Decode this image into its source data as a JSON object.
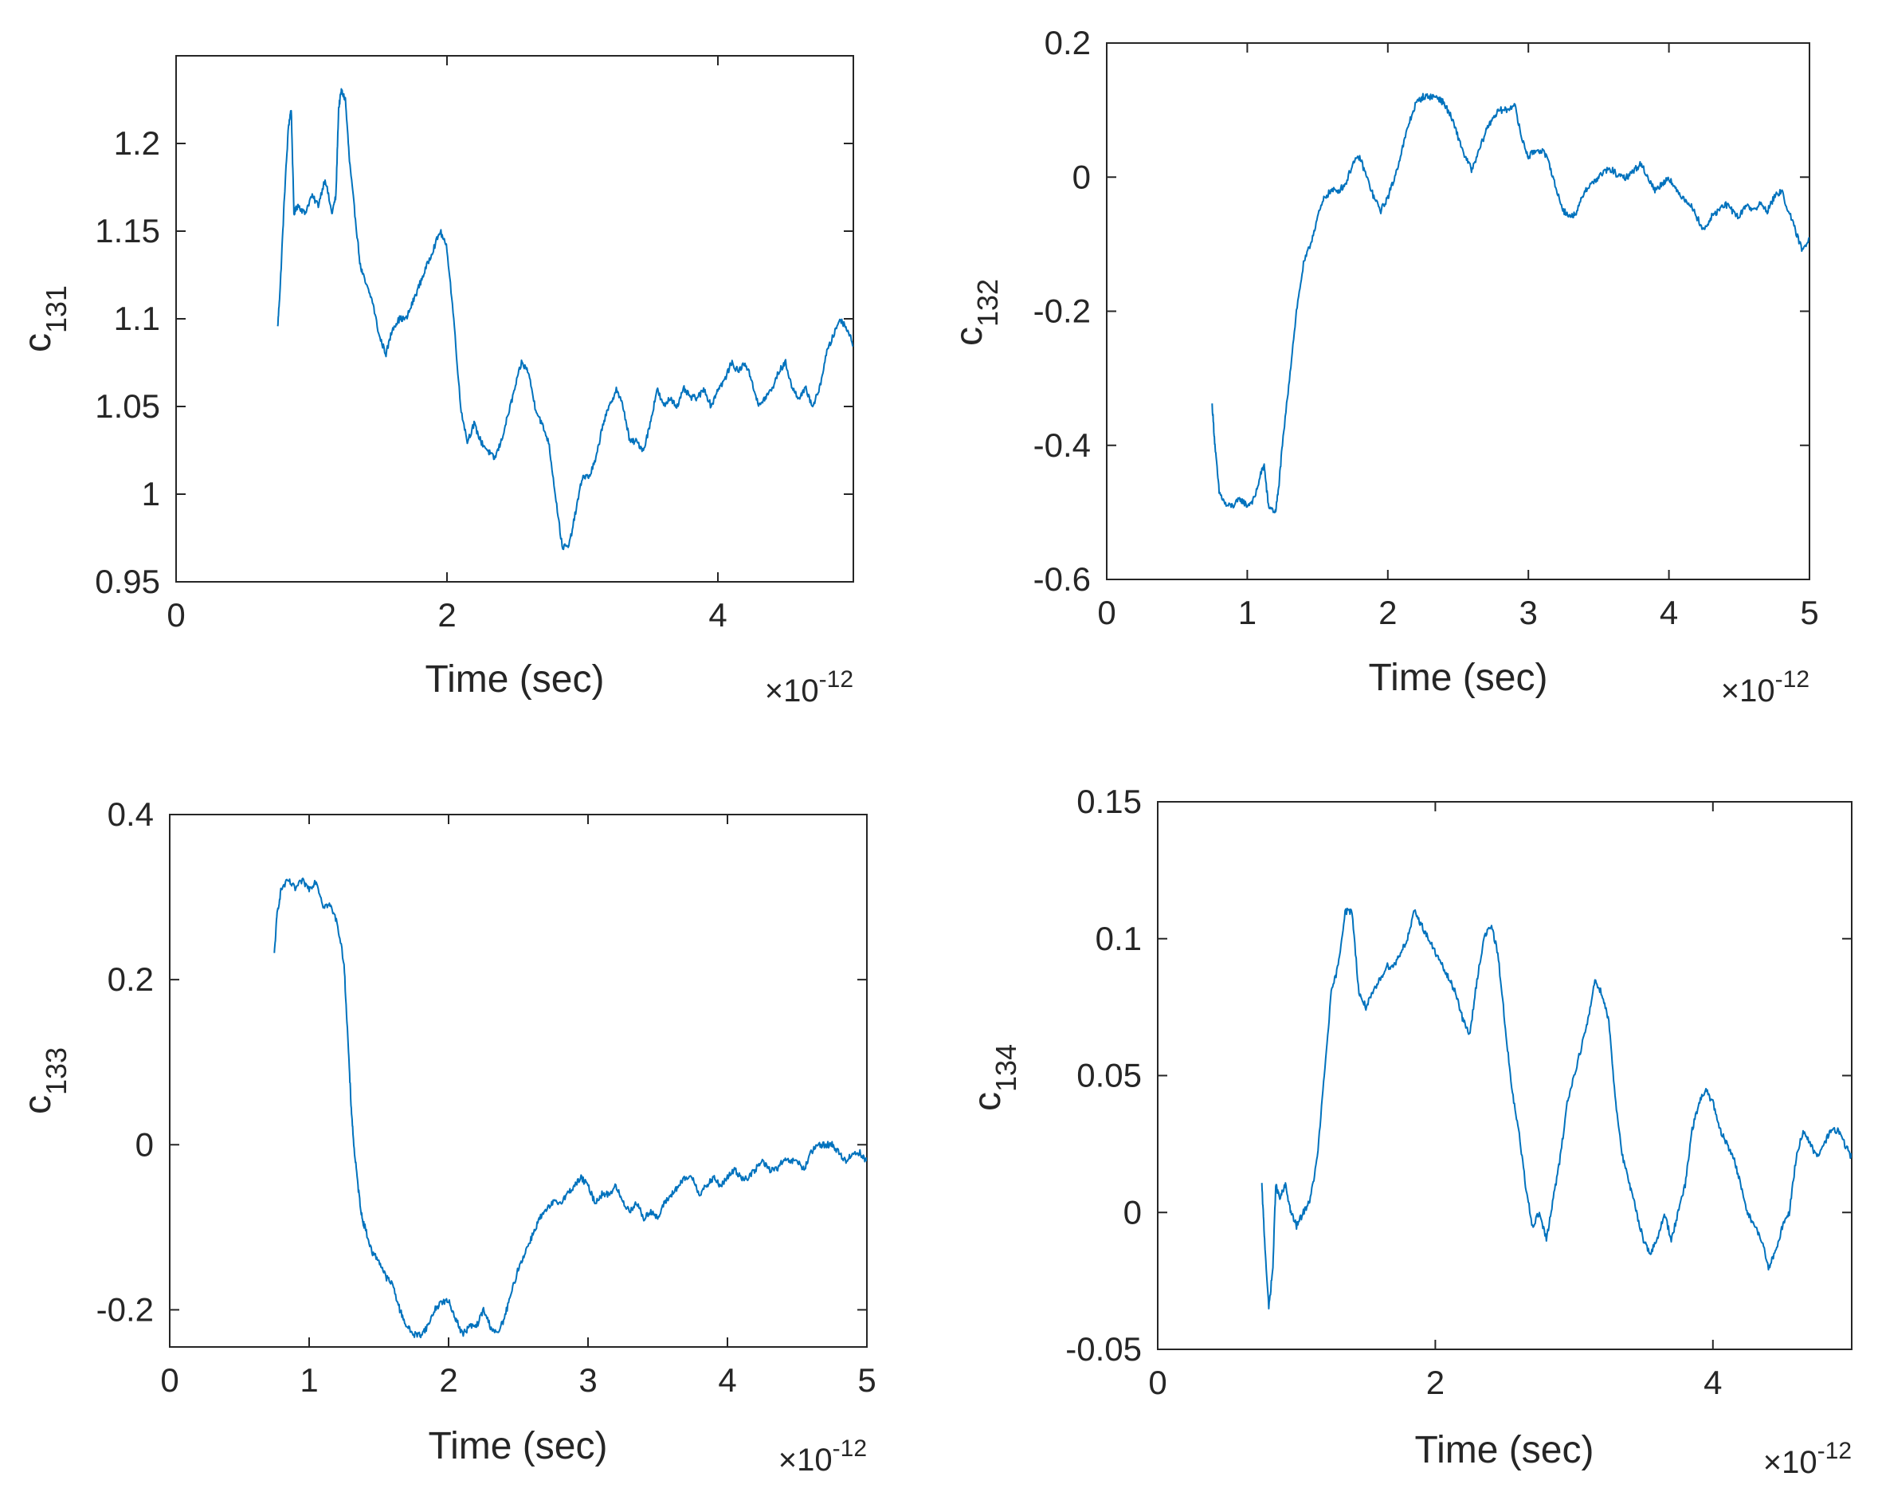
{
  "chart_data": [
    {
      "type": "line",
      "title": "",
      "xlabel": "Time (sec)",
      "ylabel_main": "c",
      "ylabel_sub": "131",
      "x_multiplier": "×10",
      "x_exponent": "-12",
      "xlim": [
        0,
        5
      ],
      "ylim": [
        0.95,
        1.25
      ],
      "xticks": [
        0,
        2,
        4
      ],
      "xtick_labels": [
        "0",
        "2",
        "4"
      ],
      "yticks": [
        0.95,
        1.0,
        1.05,
        1.1,
        1.15,
        1.2
      ],
      "ytick_labels": [
        "0.95",
        "1",
        "1.05",
        "1.1",
        "1.15",
        "1.2"
      ],
      "line_color": "#0072BD",
      "grid": false,
      "series": [
        {
          "name": "c131",
          "x": [
            0.75,
            0.77,
            0.8,
            0.83,
            0.85,
            0.87,
            0.9,
            0.95,
            1.0,
            1.05,
            1.1,
            1.15,
            1.18,
            1.2,
            1.22,
            1.25,
            1.28,
            1.32,
            1.36,
            1.4,
            1.45,
            1.5,
            1.55,
            1.6,
            1.65,
            1.7,
            1.75,
            1.8,
            1.85,
            1.9,
            1.95,
            2.0,
            2.05,
            2.1,
            2.15,
            2.2,
            2.25,
            2.3,
            2.35,
            2.4,
            2.45,
            2.5,
            2.55,
            2.6,
            2.65,
            2.7,
            2.75,
            2.8,
            2.85,
            2.9,
            2.95,
            3.0,
            3.05,
            3.1,
            3.15,
            3.2,
            3.25,
            3.3,
            3.35,
            3.4,
            3.45,
            3.5,
            3.55,
            3.6,
            3.65,
            3.7,
            3.75,
            3.8,
            3.85,
            3.9,
            3.95,
            4.0,
            4.05,
            4.1,
            4.15,
            4.2,
            4.25,
            4.3,
            4.35,
            4.4,
            4.45,
            4.5,
            4.55,
            4.6,
            4.65,
            4.7,
            4.75,
            4.8,
            4.85,
            4.9,
            4.95,
            5.0
          ],
          "y": [
            1.095,
            1.12,
            1.17,
            1.21,
            1.22,
            1.16,
            1.165,
            1.16,
            1.17,
            1.165,
            1.18,
            1.16,
            1.17,
            1.22,
            1.23,
            1.225,
            1.19,
            1.16,
            1.13,
            1.12,
            1.11,
            1.09,
            1.08,
            1.095,
            1.1,
            1.1,
            1.11,
            1.12,
            1.13,
            1.14,
            1.15,
            1.14,
            1.1,
            1.05,
            1.03,
            1.04,
            1.03,
            1.025,
            1.02,
            1.03,
            1.045,
            1.06,
            1.075,
            1.07,
            1.05,
            1.04,
            1.03,
            1.0,
            0.97,
            0.97,
            0.99,
            1.01,
            1.01,
            1.02,
            1.04,
            1.05,
            1.06,
            1.05,
            1.03,
            1.03,
            1.025,
            1.04,
            1.06,
            1.05,
            1.055,
            1.05,
            1.06,
            1.055,
            1.055,
            1.06,
            1.05,
            1.06,
            1.065,
            1.075,
            1.07,
            1.075,
            1.065,
            1.05,
            1.055,
            1.06,
            1.07,
            1.075,
            1.06,
            1.055,
            1.06,
            1.05,
            1.06,
            1.08,
            1.09,
            1.1,
            1.095,
            1.085
          ]
        }
      ]
    },
    {
      "type": "line",
      "title": "",
      "xlabel": "Time (sec)",
      "ylabel_main": "c",
      "ylabel_sub": "132",
      "x_multiplier": "×10",
      "x_exponent": "-12",
      "xlim": [
        0,
        5
      ],
      "ylim": [
        -0.6,
        0.2
      ],
      "xticks": [
        0,
        1,
        2,
        3,
        4,
        5
      ],
      "xtick_labels": [
        "0",
        "1",
        "2",
        "3",
        "4",
        "5"
      ],
      "yticks": [
        -0.6,
        -0.4,
        -0.2,
        0,
        0.2
      ],
      "ytick_labels": [
        "-0.6",
        "-0.4",
        "-0.2",
        "0",
        "0.2"
      ],
      "line_color": "#0072BD",
      "grid": false,
      "series": [
        {
          "name": "c132",
          "x": [
            0.75,
            0.77,
            0.8,
            0.85,
            0.9,
            0.95,
            1.0,
            1.05,
            1.1,
            1.12,
            1.15,
            1.2,
            1.22,
            1.25,
            1.3,
            1.35,
            1.4,
            1.45,
            1.5,
            1.55,
            1.6,
            1.65,
            1.7,
            1.75,
            1.8,
            1.85,
            1.9,
            1.95,
            2.0,
            2.05,
            2.1,
            2.15,
            2.2,
            2.25,
            2.3,
            2.35,
            2.4,
            2.45,
            2.5,
            2.55,
            2.6,
            2.65,
            2.7,
            2.75,
            2.8,
            2.85,
            2.9,
            2.95,
            3.0,
            3.05,
            3.1,
            3.15,
            3.2,
            3.25,
            3.3,
            3.35,
            3.4,
            3.45,
            3.5,
            3.55,
            3.6,
            3.65,
            3.7,
            3.75,
            3.8,
            3.85,
            3.9,
            3.95,
            4.0,
            4.05,
            4.1,
            4.15,
            4.2,
            4.25,
            4.3,
            4.35,
            4.4,
            4.45,
            4.5,
            4.55,
            4.6,
            4.65,
            4.7,
            4.75,
            4.8,
            4.85,
            4.9,
            4.95,
            5.0
          ],
          "y": [
            -0.34,
            -0.4,
            -0.47,
            -0.49,
            -0.49,
            -0.48,
            -0.49,
            -0.48,
            -0.44,
            -0.43,
            -0.49,
            -0.5,
            -0.47,
            -0.4,
            -0.3,
            -0.2,
            -0.13,
            -0.1,
            -0.06,
            -0.03,
            -0.02,
            -0.02,
            -0.01,
            0.02,
            0.03,
            0.0,
            -0.03,
            -0.05,
            -0.03,
            0.0,
            0.04,
            0.08,
            0.11,
            0.12,
            0.12,
            0.12,
            0.11,
            0.09,
            0.06,
            0.03,
            0.01,
            0.04,
            0.07,
            0.09,
            0.1,
            0.1,
            0.11,
            0.06,
            0.03,
            0.04,
            0.04,
            0.02,
            -0.02,
            -0.05,
            -0.06,
            -0.05,
            -0.02,
            -0.01,
            0.0,
            0.01,
            0.01,
            0.0,
            0.0,
            0.01,
            0.02,
            0.0,
            -0.02,
            -0.01,
            0.0,
            -0.02,
            -0.03,
            -0.04,
            -0.06,
            -0.08,
            -0.06,
            -0.05,
            -0.04,
            -0.05,
            -0.06,
            -0.04,
            -0.05,
            -0.04,
            -0.05,
            -0.03,
            -0.02,
            -0.05,
            -0.08,
            -0.11,
            -0.09
          ]
        }
      ]
    },
    {
      "type": "line",
      "title": "",
      "xlabel": "Time (sec)",
      "ylabel_main": "c",
      "ylabel_sub": "133",
      "x_multiplier": "×10",
      "x_exponent": "-12",
      "xlim": [
        0,
        5
      ],
      "ylim": [
        -0.245,
        0.4
      ],
      "xticks": [
        0,
        1,
        2,
        3,
        4,
        5
      ],
      "xtick_labels": [
        "0",
        "1",
        "2",
        "3",
        "4",
        "5"
      ],
      "yticks": [
        -0.2,
        0,
        0.2,
        0.4
      ],
      "ytick_labels": [
        "-0.2",
        "0",
        "0.2",
        "0.4"
      ],
      "line_color": "#0072BD",
      "grid": false,
      "series": [
        {
          "name": "c133",
          "x": [
            0.75,
            0.77,
            0.8,
            0.85,
            0.9,
            0.95,
            1.0,
            1.05,
            1.1,
            1.15,
            1.2,
            1.25,
            1.28,
            1.3,
            1.32,
            1.35,
            1.38,
            1.4,
            1.45,
            1.5,
            1.55,
            1.6,
            1.65,
            1.7,
            1.75,
            1.8,
            1.85,
            1.9,
            1.95,
            2.0,
            2.05,
            2.1,
            2.15,
            2.2,
            2.25,
            2.3,
            2.35,
            2.4,
            2.45,
            2.5,
            2.55,
            2.6,
            2.65,
            2.7,
            2.75,
            2.8,
            2.85,
            2.9,
            2.95,
            3.0,
            3.05,
            3.1,
            3.15,
            3.2,
            3.25,
            3.3,
            3.35,
            3.4,
            3.45,
            3.5,
            3.55,
            3.6,
            3.65,
            3.7,
            3.75,
            3.8,
            3.85,
            3.9,
            3.95,
            4.0,
            4.05,
            4.1,
            4.15,
            4.2,
            4.25,
            4.3,
            4.35,
            4.4,
            4.45,
            4.5,
            4.55,
            4.6,
            4.65,
            4.7,
            4.75,
            4.8,
            4.85,
            4.9,
            4.95,
            5.0
          ],
          "y": [
            0.23,
            0.28,
            0.31,
            0.32,
            0.31,
            0.32,
            0.31,
            0.32,
            0.29,
            0.29,
            0.27,
            0.22,
            0.12,
            0.05,
            0.0,
            -0.05,
            -0.09,
            -0.1,
            -0.13,
            -0.14,
            -0.16,
            -0.17,
            -0.2,
            -0.22,
            -0.23,
            -0.23,
            -0.22,
            -0.2,
            -0.19,
            -0.19,
            -0.21,
            -0.23,
            -0.22,
            -0.22,
            -0.2,
            -0.22,
            -0.23,
            -0.21,
            -0.18,
            -0.15,
            -0.13,
            -0.11,
            -0.09,
            -0.08,
            -0.07,
            -0.07,
            -0.06,
            -0.05,
            -0.04,
            -0.05,
            -0.07,
            -0.06,
            -0.06,
            -0.05,
            -0.07,
            -0.08,
            -0.07,
            -0.09,
            -0.08,
            -0.09,
            -0.07,
            -0.06,
            -0.05,
            -0.04,
            -0.04,
            -0.06,
            -0.05,
            -0.04,
            -0.05,
            -0.04,
            -0.03,
            -0.04,
            -0.04,
            -0.03,
            -0.02,
            -0.03,
            -0.03,
            -0.02,
            -0.02,
            -0.02,
            -0.03,
            -0.01,
            0.0,
            0.0,
            0.0,
            -0.01,
            -0.02,
            -0.01,
            -0.01,
            -0.02
          ]
        }
      ]
    },
    {
      "type": "line",
      "title": "",
      "xlabel": "Time (sec)",
      "ylabel_main": "c",
      "ylabel_sub": "134",
      "x_multiplier": "×10",
      "x_exponent": "-12",
      "xlim": [
        0,
        5
      ],
      "ylim": [
        -0.05,
        0.15
      ],
      "xticks": [
        0,
        2,
        4
      ],
      "xtick_labels": [
        "0",
        "2",
        "4"
      ],
      "yticks": [
        -0.05,
        0,
        0.05,
        0.1,
        0.15
      ],
      "ytick_labels": [
        "-0.05",
        "0",
        "0.05",
        "0.1",
        "0.15"
      ],
      "line_color": "#0072BD",
      "grid": false,
      "series": [
        {
          "name": "c134",
          "x": [
            0.75,
            0.77,
            0.8,
            0.83,
            0.85,
            0.88,
            0.92,
            0.96,
            1.0,
            1.05,
            1.1,
            1.15,
            1.2,
            1.25,
            1.3,
            1.35,
            1.4,
            1.45,
            1.5,
            1.55,
            1.6,
            1.65,
            1.7,
            1.75,
            1.8,
            1.85,
            1.9,
            1.95,
            2.0,
            2.05,
            2.1,
            2.15,
            2.2,
            2.25,
            2.3,
            2.35,
            2.4,
            2.45,
            2.5,
            2.55,
            2.6,
            2.65,
            2.7,
            2.75,
            2.8,
            2.85,
            2.9,
            2.95,
            3.0,
            3.05,
            3.1,
            3.15,
            3.2,
            3.25,
            3.3,
            3.35,
            3.4,
            3.45,
            3.5,
            3.55,
            3.6,
            3.65,
            3.7,
            3.75,
            3.8,
            3.85,
            3.9,
            3.95,
            4.0,
            4.05,
            4.1,
            4.15,
            4.2,
            4.25,
            4.3,
            4.35,
            4.4,
            4.45,
            4.5,
            4.55,
            4.6,
            4.65,
            4.7,
            4.75,
            4.8,
            4.85,
            4.9,
            4.95,
            5.0
          ],
          "y": [
            0.01,
            -0.01,
            -0.035,
            -0.02,
            0.01,
            0.005,
            0.01,
            0.0,
            -0.005,
            0.0,
            0.005,
            0.02,
            0.05,
            0.08,
            0.09,
            0.11,
            0.11,
            0.08,
            0.075,
            0.08,
            0.085,
            0.09,
            0.09,
            0.095,
            0.1,
            0.11,
            0.105,
            0.1,
            0.095,
            0.09,
            0.085,
            0.08,
            0.07,
            0.065,
            0.085,
            0.1,
            0.105,
            0.095,
            0.07,
            0.045,
            0.03,
            0.01,
            -0.005,
            0.0,
            -0.01,
            0.005,
            0.02,
            0.04,
            0.05,
            0.06,
            0.07,
            0.085,
            0.08,
            0.07,
            0.04,
            0.02,
            0.01,
            0.0,
            -0.01,
            -0.015,
            -0.01,
            0.0,
            -0.01,
            0.0,
            0.01,
            0.03,
            0.04,
            0.045,
            0.04,
            0.03,
            0.025,
            0.02,
            0.01,
            0.0,
            -0.005,
            -0.01,
            -0.02,
            -0.015,
            -0.005,
            0.0,
            0.02,
            0.03,
            0.025,
            0.02,
            0.025,
            0.03,
            0.03,
            0.025,
            0.02
          ]
        }
      ]
    }
  ]
}
